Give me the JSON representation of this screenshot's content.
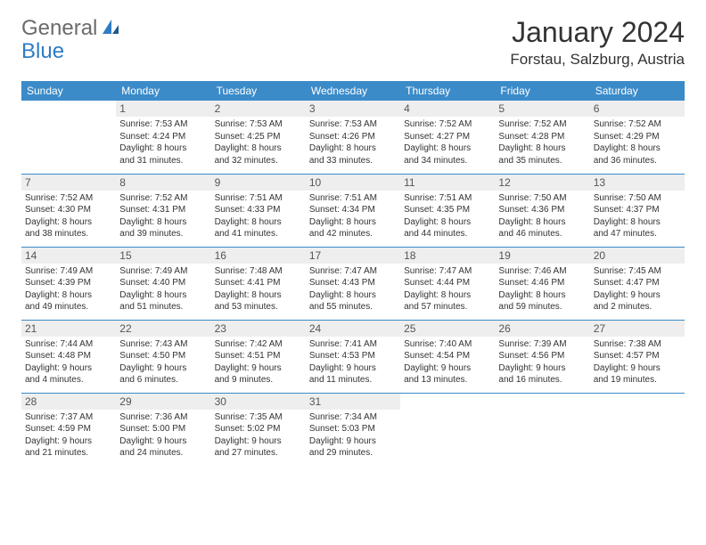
{
  "logo": {
    "text1": "General",
    "text2": "Blue"
  },
  "title": "January 2024",
  "location": "Forstau, Salzburg, Austria",
  "colors": {
    "header_bg": "#3b8bc9",
    "header_text": "#ffffff",
    "border": "#3b8bc9",
    "daynum_bg": "#eeeeee",
    "logo_gray": "#6b6b6b",
    "logo_blue": "#2e7cc2"
  },
  "day_headers": [
    "Sunday",
    "Monday",
    "Tuesday",
    "Wednesday",
    "Thursday",
    "Friday",
    "Saturday"
  ],
  "weeks": [
    [
      {
        "n": "",
        "lines": []
      },
      {
        "n": "1",
        "lines": [
          "Sunrise: 7:53 AM",
          "Sunset: 4:24 PM",
          "Daylight: 8 hours",
          "and 31 minutes."
        ]
      },
      {
        "n": "2",
        "lines": [
          "Sunrise: 7:53 AM",
          "Sunset: 4:25 PM",
          "Daylight: 8 hours",
          "and 32 minutes."
        ]
      },
      {
        "n": "3",
        "lines": [
          "Sunrise: 7:53 AM",
          "Sunset: 4:26 PM",
          "Daylight: 8 hours",
          "and 33 minutes."
        ]
      },
      {
        "n": "4",
        "lines": [
          "Sunrise: 7:52 AM",
          "Sunset: 4:27 PM",
          "Daylight: 8 hours",
          "and 34 minutes."
        ]
      },
      {
        "n": "5",
        "lines": [
          "Sunrise: 7:52 AM",
          "Sunset: 4:28 PM",
          "Daylight: 8 hours",
          "and 35 minutes."
        ]
      },
      {
        "n": "6",
        "lines": [
          "Sunrise: 7:52 AM",
          "Sunset: 4:29 PM",
          "Daylight: 8 hours",
          "and 36 minutes."
        ]
      }
    ],
    [
      {
        "n": "7",
        "lines": [
          "Sunrise: 7:52 AM",
          "Sunset: 4:30 PM",
          "Daylight: 8 hours",
          "and 38 minutes."
        ]
      },
      {
        "n": "8",
        "lines": [
          "Sunrise: 7:52 AM",
          "Sunset: 4:31 PM",
          "Daylight: 8 hours",
          "and 39 minutes."
        ]
      },
      {
        "n": "9",
        "lines": [
          "Sunrise: 7:51 AM",
          "Sunset: 4:33 PM",
          "Daylight: 8 hours",
          "and 41 minutes."
        ]
      },
      {
        "n": "10",
        "lines": [
          "Sunrise: 7:51 AM",
          "Sunset: 4:34 PM",
          "Daylight: 8 hours",
          "and 42 minutes."
        ]
      },
      {
        "n": "11",
        "lines": [
          "Sunrise: 7:51 AM",
          "Sunset: 4:35 PM",
          "Daylight: 8 hours",
          "and 44 minutes."
        ]
      },
      {
        "n": "12",
        "lines": [
          "Sunrise: 7:50 AM",
          "Sunset: 4:36 PM",
          "Daylight: 8 hours",
          "and 46 minutes."
        ]
      },
      {
        "n": "13",
        "lines": [
          "Sunrise: 7:50 AM",
          "Sunset: 4:37 PM",
          "Daylight: 8 hours",
          "and 47 minutes."
        ]
      }
    ],
    [
      {
        "n": "14",
        "lines": [
          "Sunrise: 7:49 AM",
          "Sunset: 4:39 PM",
          "Daylight: 8 hours",
          "and 49 minutes."
        ]
      },
      {
        "n": "15",
        "lines": [
          "Sunrise: 7:49 AM",
          "Sunset: 4:40 PM",
          "Daylight: 8 hours",
          "and 51 minutes."
        ]
      },
      {
        "n": "16",
        "lines": [
          "Sunrise: 7:48 AM",
          "Sunset: 4:41 PM",
          "Daylight: 8 hours",
          "and 53 minutes."
        ]
      },
      {
        "n": "17",
        "lines": [
          "Sunrise: 7:47 AM",
          "Sunset: 4:43 PM",
          "Daylight: 8 hours",
          "and 55 minutes."
        ]
      },
      {
        "n": "18",
        "lines": [
          "Sunrise: 7:47 AM",
          "Sunset: 4:44 PM",
          "Daylight: 8 hours",
          "and 57 minutes."
        ]
      },
      {
        "n": "19",
        "lines": [
          "Sunrise: 7:46 AM",
          "Sunset: 4:46 PM",
          "Daylight: 8 hours",
          "and 59 minutes."
        ]
      },
      {
        "n": "20",
        "lines": [
          "Sunrise: 7:45 AM",
          "Sunset: 4:47 PM",
          "Daylight: 9 hours",
          "and 2 minutes."
        ]
      }
    ],
    [
      {
        "n": "21",
        "lines": [
          "Sunrise: 7:44 AM",
          "Sunset: 4:48 PM",
          "Daylight: 9 hours",
          "and 4 minutes."
        ]
      },
      {
        "n": "22",
        "lines": [
          "Sunrise: 7:43 AM",
          "Sunset: 4:50 PM",
          "Daylight: 9 hours",
          "and 6 minutes."
        ]
      },
      {
        "n": "23",
        "lines": [
          "Sunrise: 7:42 AM",
          "Sunset: 4:51 PM",
          "Daylight: 9 hours",
          "and 9 minutes."
        ]
      },
      {
        "n": "24",
        "lines": [
          "Sunrise: 7:41 AM",
          "Sunset: 4:53 PM",
          "Daylight: 9 hours",
          "and 11 minutes."
        ]
      },
      {
        "n": "25",
        "lines": [
          "Sunrise: 7:40 AM",
          "Sunset: 4:54 PM",
          "Daylight: 9 hours",
          "and 13 minutes."
        ]
      },
      {
        "n": "26",
        "lines": [
          "Sunrise: 7:39 AM",
          "Sunset: 4:56 PM",
          "Daylight: 9 hours",
          "and 16 minutes."
        ]
      },
      {
        "n": "27",
        "lines": [
          "Sunrise: 7:38 AM",
          "Sunset: 4:57 PM",
          "Daylight: 9 hours",
          "and 19 minutes."
        ]
      }
    ],
    [
      {
        "n": "28",
        "lines": [
          "Sunrise: 7:37 AM",
          "Sunset: 4:59 PM",
          "Daylight: 9 hours",
          "and 21 minutes."
        ]
      },
      {
        "n": "29",
        "lines": [
          "Sunrise: 7:36 AM",
          "Sunset: 5:00 PM",
          "Daylight: 9 hours",
          "and 24 minutes."
        ]
      },
      {
        "n": "30",
        "lines": [
          "Sunrise: 7:35 AM",
          "Sunset: 5:02 PM",
          "Daylight: 9 hours",
          "and 27 minutes."
        ]
      },
      {
        "n": "31",
        "lines": [
          "Sunrise: 7:34 AM",
          "Sunset: 5:03 PM",
          "Daylight: 9 hours",
          "and 29 minutes."
        ]
      },
      {
        "n": "",
        "lines": []
      },
      {
        "n": "",
        "lines": []
      },
      {
        "n": "",
        "lines": []
      }
    ]
  ]
}
